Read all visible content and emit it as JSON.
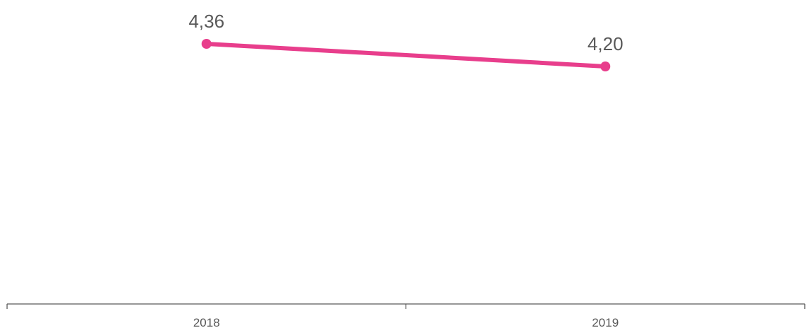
{
  "chart_data": {
    "type": "line",
    "categories": [
      "2018",
      "2019"
    ],
    "series": [
      {
        "values": [
          4.36,
          4.2
        ],
        "color": "#e83e8c",
        "data_labels": [
          "4,36",
          "4,20"
        ]
      }
    ],
    "axis_color": "#595959",
    "grid": false
  }
}
